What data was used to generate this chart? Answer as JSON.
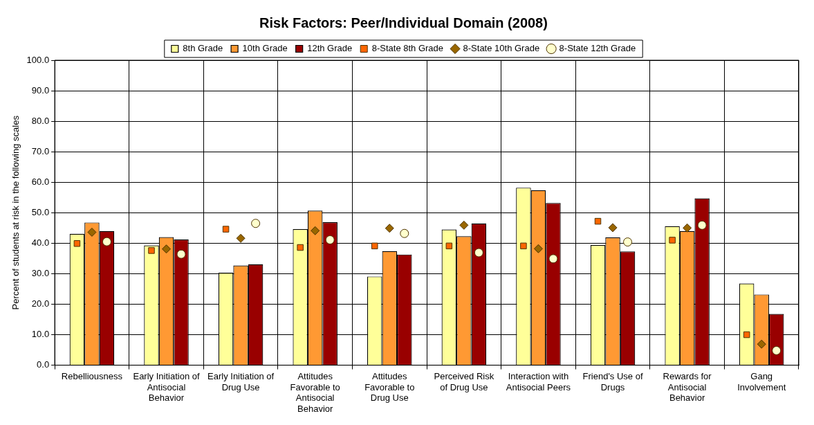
{
  "chart_data": {
    "type": "bar",
    "title": "Risk Factors: Peer/Individual Domain (2008)",
    "ylabel": "Percent of students at risk in the following scales",
    "categories": [
      "Rebelliousness",
      "Early Initiation of Antisocial Behavior",
      "Early Initiation of Drug Use",
      "Attitudes Favorable to Antisocial Behavior",
      "Attitudes Favorable to Drug Use",
      "Perceived Risk of Drug Use",
      "Interaction with Antisocial Peers",
      "Friend's Use of Drugs",
      "Rewards for Antisocial Behavior",
      "Gang Involvement"
    ],
    "series": [
      {
        "name": "8th Grade",
        "type": "bar",
        "color": "#ffff99",
        "values": [
          43.1,
          39.3,
          30.3,
          44.6,
          29.1,
          44.5,
          58.2,
          39.4,
          45.6,
          26.8
        ]
      },
      {
        "name": "10th Grade",
        "type": "bar",
        "color": "#ff9933",
        "values": [
          46.8,
          42.0,
          32.7,
          50.7,
          37.4,
          42.3,
          57.4,
          41.9,
          44.0,
          23.2
        ]
      },
      {
        "name": "12th Grade",
        "type": "bar",
        "color": "#990000",
        "values": [
          44.0,
          41.2,
          33.1,
          46.9,
          36.3,
          46.5,
          53.2,
          37.3,
          54.7,
          16.8
        ]
      },
      {
        "name": "8-State 8th Grade",
        "type": "scatter",
        "marker": "square",
        "color": "#ff6600",
        "values": [
          39.9,
          37.6,
          44.6,
          38.6,
          39.1,
          39.1,
          39.1,
          47.2,
          41.0,
          10.0
        ]
      },
      {
        "name": "8-State 10th Grade",
        "type": "scatter",
        "marker": "diamond",
        "color": "#996600",
        "values": [
          43.6,
          38.1,
          41.6,
          44.1,
          44.9,
          45.9,
          38.2,
          45.1,
          45.0,
          6.9
        ]
      },
      {
        "name": "8-State 12th Grade",
        "type": "scatter",
        "marker": "circle",
        "color": "#ffffcc",
        "values": [
          40.5,
          36.4,
          46.5,
          41.1,
          43.2,
          36.9,
          34.9,
          40.4,
          45.9,
          4.8
        ]
      }
    ],
    "ylim": [
      0,
      100
    ],
    "yticks": [
      {
        "value": 0,
        "label": "0.0"
      },
      {
        "value": 10,
        "label": "10.0"
      },
      {
        "value": 20,
        "label": "20.0"
      },
      {
        "value": 30,
        "label": "30.0"
      },
      {
        "value": 40,
        "label": "40.0"
      },
      {
        "value": 50,
        "label": "50.0"
      },
      {
        "value": 60,
        "label": "60.0"
      },
      {
        "value": 70,
        "label": "70.0"
      },
      {
        "value": 80,
        "label": "80.0"
      },
      {
        "value": 90,
        "label": "90.0"
      },
      {
        "value": 100,
        "label": "100.0"
      }
    ],
    "grid": true,
    "legend": "top"
  }
}
